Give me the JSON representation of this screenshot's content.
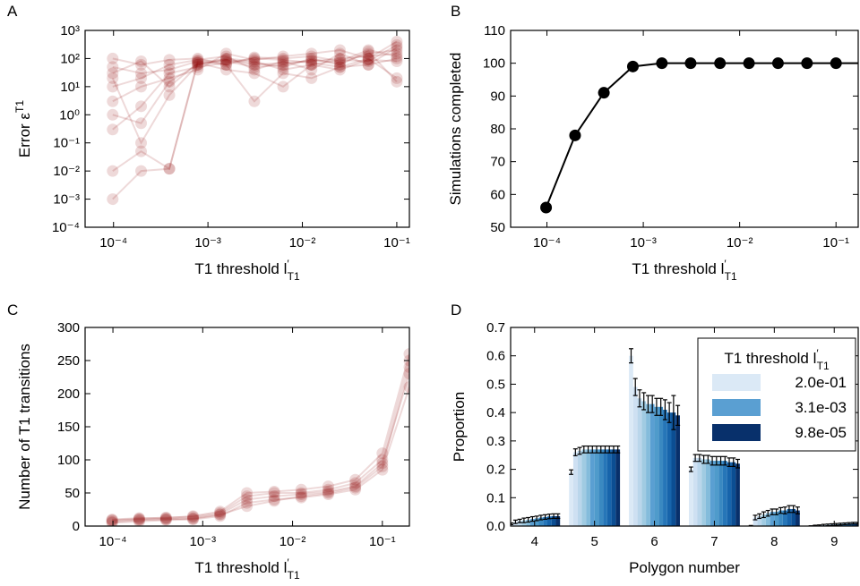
{
  "chart_data": [
    {
      "type": "line",
      "panel": "A",
      "xscale": "log",
      "yscale": "log",
      "xlabel": {
        "text": "T1 threshold l",
        "sup": "′",
        "sub": "T1"
      },
      "ylabel": {
        "text": "Error ε",
        "sup": "T1"
      },
      "xlim": [
        5e-05,
        0.136
      ],
      "ylim": [
        0.0001,
        1000
      ],
      "xticks": [
        {
          "value": 0.0001,
          "label": "10⁻⁴"
        },
        {
          "value": 0.001,
          "label": "10⁻³"
        },
        {
          "value": 0.01,
          "label": "10⁻²"
        },
        {
          "value": 0.1,
          "label": "10⁻¹"
        }
      ],
      "yticks": [
        {
          "value": 0.0001,
          "label": "10⁻⁴"
        },
        {
          "value": 0.001,
          "label": "10⁻³"
        },
        {
          "value": 0.01,
          "label": "10⁻²"
        },
        {
          "value": 0.1,
          "label": "10⁻¹"
        },
        {
          "value": 1,
          "label": "10⁰"
        },
        {
          "value": 10,
          "label": "10¹"
        },
        {
          "value": 100,
          "label": "10²"
        },
        {
          "value": 1000,
          "label": "10³"
        }
      ],
      "color": "#8b0000",
      "alpha": 0.15,
      "x": [
        9.8e-05,
        0.000196,
        0.00039,
        0.00078,
        0.00156,
        0.0031,
        0.00625,
        0.0125,
        0.025,
        0.05,
        0.1
      ],
      "series": [
        {
          "values": [
            50,
            30,
            40,
            80,
            90,
            60,
            70,
            80,
            100,
            120,
            150
          ]
        },
        {
          "values": [
            0.001,
            0.01,
            0.012,
            70,
            80,
            50,
            60,
            90,
            70,
            150,
            200
          ]
        },
        {
          "values": [
            20,
            0.1,
            5,
            60,
            100,
            80,
            40,
            60,
            90,
            80,
            300
          ]
        },
        {
          "values": [
            0.3,
            2,
            30,
            50,
            70,
            100,
            90,
            70,
            50,
            100,
            20
          ]
        },
        {
          "values": [
            100,
            60,
            90,
            100,
            60,
            110,
            100,
            120,
            80,
            200,
            120
          ]
        },
        {
          "values": [
            0.01,
            0.05,
            0.012,
            80,
            60,
            3,
            30,
            20,
            50,
            60,
            100
          ]
        },
        {
          "values": [
            3,
            10,
            20,
            40,
            150,
            90,
            120,
            150,
            200,
            100,
            400
          ]
        },
        {
          "values": [
            30,
            80,
            10,
            70,
            40,
            30,
            10,
            60,
            40,
            90,
            80
          ]
        },
        {
          "values": [
            10,
            20,
            60,
            90,
            120,
            40,
            80,
            40,
            150,
            60,
            250
          ]
        },
        {
          "values": [
            1,
            0.5,
            15,
            60,
            90,
            70,
            50,
            100,
            60,
            180,
            15
          ]
        }
      ]
    },
    {
      "type": "line",
      "panel": "B",
      "xscale": "log",
      "xlabel": {
        "text": "T1 threshold l",
        "sup": "′",
        "sub": "T1"
      },
      "ylabel": {
        "text": "Simulations completed"
      },
      "xlim": [
        4.2e-05,
        0.17
      ],
      "ylim": [
        50,
        110
      ],
      "xticks": [
        {
          "value": 0.0001,
          "label": "10⁻⁴"
        },
        {
          "value": 0.001,
          "label": "10⁻³"
        },
        {
          "value": 0.01,
          "label": "10⁻²"
        },
        {
          "value": 0.1,
          "label": "10⁻¹"
        }
      ],
      "yticks": [
        50,
        60,
        70,
        80,
        90,
        100,
        110
      ],
      "color": "#000000",
      "alpha": 1,
      "x": [
        9.8e-05,
        0.000196,
        0.00039,
        0.00078,
        0.00156,
        0.0031,
        0.00625,
        0.0125,
        0.025,
        0.05,
        0.1,
        0.2
      ],
      "series": [
        {
          "values": [
            56,
            78,
            91,
            99,
            100,
            100,
            100,
            100,
            100,
            100,
            100,
            100
          ]
        }
      ]
    },
    {
      "type": "line",
      "panel": "C",
      "xscale": "log",
      "xlabel": {
        "text": "T1 threshold l",
        "sup": "′",
        "sub": "T1"
      },
      "ylabel": {
        "text": "Number of T1 transitions"
      },
      "xlim": [
        4.9e-05,
        0.2
      ],
      "ylim": [
        0,
        300
      ],
      "xticks": [
        {
          "value": 0.0001,
          "label": "10⁻⁴"
        },
        {
          "value": 0.001,
          "label": "10⁻³"
        },
        {
          "value": 0.01,
          "label": "10⁻²"
        },
        {
          "value": 0.1,
          "label": "10⁻¹"
        }
      ],
      "yticks": [
        0,
        50,
        100,
        150,
        200,
        250,
        300
      ],
      "color": "#8b0000",
      "alpha": 0.15,
      "x": [
        9.8e-05,
        0.000196,
        0.00039,
        0.00078,
        0.00156,
        0.0031,
        0.00625,
        0.0125,
        0.025,
        0.05,
        0.1,
        0.2
      ],
      "series": [
        {
          "values": [
            8,
            10,
            10,
            12,
            18,
            40,
            45,
            48,
            52,
            60,
            95,
            230
          ]
        },
        {
          "values": [
            5,
            7,
            9,
            10,
            15,
            35,
            40,
            43,
            48,
            55,
            85,
            210
          ]
        },
        {
          "values": [
            10,
            12,
            12,
            15,
            22,
            50,
            52,
            55,
            60,
            70,
            110,
            260
          ]
        },
        {
          "values": [
            6,
            9,
            11,
            11,
            17,
            30,
            38,
            45,
            50,
            58,
            90,
            240
          ]
        },
        {
          "values": [
            9,
            11,
            13,
            14,
            20,
            45,
            50,
            50,
            55,
            65,
            100,
            250
          ]
        }
      ]
    },
    {
      "type": "bar",
      "panel": "D",
      "xlabel": {
        "text": "Polygon number"
      },
      "ylabel": {
        "text": "Proportion"
      },
      "xlim": [
        3.6,
        9.4
      ],
      "ylim": [
        0,
        0.7
      ],
      "xticks": [
        4,
        5,
        6,
        7,
        8,
        9
      ],
      "yticks": [
        {
          "value": 0,
          "label": "0.0"
        },
        0.1,
        0.2,
        0.3,
        0.4,
        0.5,
        0.6,
        0.7
      ],
      "x": [
        4,
        5,
        6,
        7,
        8,
        9
      ],
      "legend": "upper right",
      "legend_title": {
        "text": "T1 threshold l",
        "sup": "′",
        "sub": "T1"
      },
      "series": [
        {
          "name": "2.0e-01",
          "color": "#dbe9f6",
          "values": [
            0.008,
            0.19,
            0.6,
            0.2,
            0.0,
            0.0
          ],
          "errors": [
            0.003,
            0.008,
            0.025,
            0.008,
            0.002,
            0.001
          ]
        },
        {
          "color": "#cee0f2",
          "values": [
            0.015,
            0.26,
            0.49,
            0.24,
            0.03,
            0.001
          ],
          "errors": [
            0.006,
            0.012,
            0.03,
            0.012,
            0.008,
            0.002
          ]
        },
        {
          "color": "#bad6eb",
          "values": [
            0.018,
            0.265,
            0.45,
            0.24,
            0.035,
            0.002
          ],
          "errors": [
            0.006,
            0.012,
            0.03,
            0.012,
            0.008,
            0.002
          ]
        },
        {
          "color": "#a0cbe2",
          "values": [
            0.02,
            0.27,
            0.44,
            0.235,
            0.04,
            0.003
          ],
          "errors": [
            0.008,
            0.012,
            0.03,
            0.014,
            0.01,
            0.003
          ]
        },
        {
          "color": "#84bcdb",
          "values": [
            0.022,
            0.27,
            0.43,
            0.235,
            0.045,
            0.004
          ],
          "errors": [
            0.008,
            0.012,
            0.03,
            0.014,
            0.01,
            0.003
          ]
        },
        {
          "name": "3.1e-03",
          "color": "#5a9fd2",
          "values": [
            0.025,
            0.27,
            0.43,
            0.23,
            0.05,
            0.005
          ],
          "errors": [
            0.008,
            0.012,
            0.03,
            0.015,
            0.01,
            0.003
          ]
        },
        {
          "color": "#4f9bcb",
          "values": [
            0.027,
            0.27,
            0.42,
            0.23,
            0.05,
            0.006
          ],
          "errors": [
            0.008,
            0.012,
            0.03,
            0.015,
            0.01,
            0.003
          ]
        },
        {
          "color": "#3a89c1",
          "values": [
            0.03,
            0.27,
            0.42,
            0.23,
            0.055,
            0.007
          ],
          "errors": [
            0.008,
            0.012,
            0.03,
            0.015,
            0.01,
            0.003
          ]
        },
        {
          "color": "#2676b8",
          "values": [
            0.032,
            0.27,
            0.41,
            0.23,
            0.055,
            0.008
          ],
          "errors": [
            0.008,
            0.012,
            0.035,
            0.015,
            0.012,
            0.003
          ]
        },
        {
          "color": "#1764ab",
          "values": [
            0.034,
            0.27,
            0.4,
            0.225,
            0.06,
            0.009
          ],
          "errors": [
            0.008,
            0.012,
            0.035,
            0.015,
            0.012,
            0.003
          ]
        },
        {
          "color": "#0b4e93",
          "values": [
            0.035,
            0.27,
            0.4,
            0.225,
            0.06,
            0.01
          ],
          "errors": [
            0.008,
            0.012,
            0.06,
            0.015,
            0.012,
            0.003
          ]
        },
        {
          "name": "9.8e-05",
          "color": "#08306b",
          "values": [
            0.035,
            0.27,
            0.39,
            0.22,
            0.055,
            0.01
          ],
          "errors": [
            0.008,
            0.012,
            0.035,
            0.015,
            0.012,
            0.003
          ]
        }
      ]
    }
  ]
}
